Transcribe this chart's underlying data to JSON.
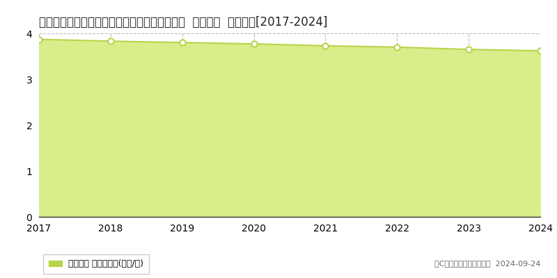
{
  "title": "青森県三戸郡南部町大字福田字あかね２番６０  基準地価  地価推移[2017-2024]",
  "years": [
    2017,
    2018,
    2019,
    2020,
    2021,
    2022,
    2023,
    2024
  ],
  "values": [
    3.87,
    3.83,
    3.8,
    3.77,
    3.73,
    3.7,
    3.65,
    3.62
  ],
  "ylim": [
    0,
    4
  ],
  "yticks": [
    0,
    1,
    2,
    3,
    4
  ],
  "line_color": "#b8d44a",
  "fill_color": "#d9ed8a",
  "marker_color": "#ffffff",
  "marker_edge_color": "#b8d44a",
  "grid_color": "#aaaaaa",
  "background_color": "#ffffff",
  "title_fontsize": 12,
  "tick_fontsize": 10,
  "legend_label": "基準地価 平均坪単価(万円/坪)",
  "copyright_text": "（C）土地価格ドットコム  2024-09-24"
}
